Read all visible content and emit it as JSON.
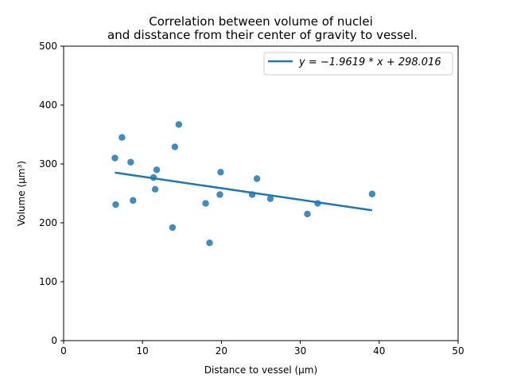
{
  "chart_data": {
    "type": "scatter",
    "title": [
      "Correlation between volume of nuclei",
      "and disstance from their center of gravity to vessel."
    ],
    "xlabel": "Distance to vessel (μm)",
    "ylabel": "Volume (μm³)",
    "xlim": [
      0,
      50
    ],
    "ylim": [
      0,
      500
    ],
    "xticks": [
      0,
      10,
      20,
      30,
      40,
      50
    ],
    "yticks": [
      0,
      100,
      200,
      300,
      400,
      500
    ],
    "grid": false,
    "legend_placement": "top-right",
    "point_color": "#1f77b4",
    "line_color": "#1f77b4",
    "series": [
      {
        "type": "scatter",
        "x": [
          6.5,
          6.6,
          7.4,
          8.5,
          8.8,
          11.4,
          11.6,
          11.8,
          13.8,
          14.1,
          14.6,
          18.0,
          18.5,
          19.8,
          19.9,
          23.9,
          24.5,
          26.2,
          30.9,
          32.2,
          39.1
        ],
        "y": [
          310,
          231,
          345,
          303,
          238,
          277,
          257,
          290,
          192,
          329,
          367,
          233,
          166,
          248,
          286,
          248,
          275,
          241,
          215,
          233,
          249
        ]
      },
      {
        "type": "line",
        "name": "y = −1.9619 * x + 298.016",
        "x": [
          6.5,
          39.1
        ],
        "y": [
          285.26,
          221.3
        ]
      }
    ]
  }
}
